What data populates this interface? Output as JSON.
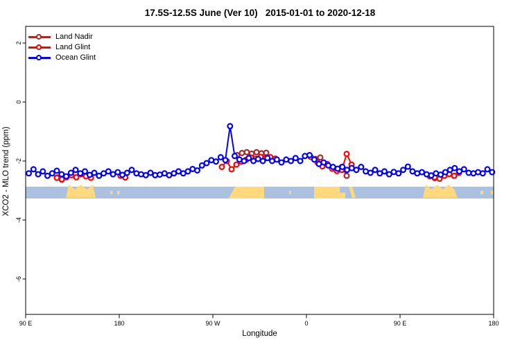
{
  "chart_data": {
    "type": "line",
    "title": "17.5S-12.5S June (Ver 10)   2015-01-01 to 2020-12-18",
    "xlabel": "Longitude",
    "ylabel": "XCO2 - MLO trend (ppm)",
    "x_axis": {
      "range_deg": [
        0,
        450
      ],
      "ticks": [
        {
          "deg": 0,
          "label": "90 E"
        },
        {
          "deg": 90,
          "label": "180"
        },
        {
          "deg": 180,
          "label": "90 W"
        },
        {
          "deg": 270,
          "label": "0"
        },
        {
          "deg": 360,
          "label": "90 E"
        },
        {
          "deg": 450,
          "label": "180"
        }
      ]
    },
    "y_axis": {
      "range": [
        -7.2,
        2.56
      ],
      "ticks": [
        {
          "v": 2,
          "label": "2"
        },
        {
          "v": 0,
          "label": "0"
        },
        {
          "v": -2,
          "label": "-2"
        },
        {
          "v": -4,
          "label": "-4"
        },
        {
          "v": -6,
          "label": "-6"
        }
      ]
    },
    "legend_position": "top-left",
    "series": [
      {
        "name": "Land Nadir",
        "color": "#a52a2a",
        "segments": [
          {
            "points": [
              [
                30,
                -2.56
              ],
              [
                34.7,
                -2.63
              ]
            ]
          },
          {
            "points": [
              [
                203.3,
                -1.8
              ],
              [
                208,
                -1.73
              ],
              [
                212.7,
                -1.7
              ],
              [
                217.3,
                -1.75
              ],
              [
                222,
                -1.7
              ],
              [
                226.7,
                -1.74
              ],
              [
                231.3,
                -1.72
              ]
            ]
          },
          {
            "points": [
              [
                274,
                -1.86
              ],
              [
                278.7,
                -1.93
              ],
              [
                283.3,
                -1.88
              ]
            ]
          },
          {
            "points": [
              [
                304,
                -2.2
              ],
              [
                308.7,
                -2.5
              ]
            ]
          },
          {
            "points": [
              [
                388.7,
                -2.52
              ],
              [
                393.3,
                -2.58
              ]
            ]
          }
        ]
      },
      {
        "name": "Land Glint",
        "color": "#ff0000",
        "segments": [
          {
            "points": [
              [
                30,
                -2.57
              ],
              [
                34.7,
                -2.62
              ],
              [
                39.3,
                -2.55
              ],
              [
                44,
                -2.48
              ],
              [
                48.7,
                -2.55
              ],
              [
                53.3,
                -2.45
              ],
              [
                58,
                -2.52
              ],
              [
                62.7,
                -2.57
              ]
            ]
          },
          {
            "points": [
              [
                91.3,
                -2.5
              ],
              [
                95.8,
                -2.56
              ]
            ]
          },
          {
            "points": [
              [
                188.7,
                -2.2
              ],
              [
                193.3,
                -2.0
              ],
              [
                198,
                -2.28
              ],
              [
                202.7,
                -2.12
              ],
              [
                207.3,
                -2.02
              ],
              [
                212,
                -1.96
              ],
              [
                216.7,
                -1.88
              ],
              [
                221.3,
                -1.92
              ],
              [
                226,
                -1.86
              ],
              [
                230.7,
                -1.9
              ],
              [
                235.3,
                -1.87
              ],
              [
                240,
                -1.92
              ]
            ]
          },
          {
            "points": [
              [
                280.7,
                -2.05
              ],
              [
                285.3,
                -2.18
              ],
              [
                290,
                -2.1
              ],
              [
                294.7,
                -2.26
              ],
              [
                299.3,
                -2.34
              ],
              [
                304,
                -2.3
              ],
              [
                308.7,
                -1.76
              ],
              [
                313.3,
                -2.12
              ],
              [
                318,
                -2.3
              ]
            ]
          },
          {
            "points": [
              [
                388.7,
                -2.5
              ],
              [
                393.3,
                -2.55
              ],
              [
                398,
                -2.6
              ],
              [
                402.7,
                -2.5
              ],
              [
                407.3,
                -2.44
              ],
              [
                412,
                -2.5
              ],
              [
                416.7,
                -2.4
              ]
            ]
          }
        ]
      },
      {
        "name": "Ocean Glint",
        "color": "#0000ff",
        "segments": [
          {
            "start_deg": 3,
            "step_deg": 4.5,
            "values": [
              -2.42,
              -2.28,
              -2.45,
              -2.35,
              -2.5,
              -2.42,
              -2.33,
              -2.45,
              -2.52,
              -2.4,
              -2.3,
              -2.42,
              -2.35,
              -2.47,
              -2.4,
              -2.5,
              -2.42,
              -2.35,
              -2.45,
              -2.38,
              -2.47,
              -2.4,
              -2.3,
              -2.42,
              -2.45,
              -2.48,
              -2.4,
              -2.48,
              -2.46,
              -2.42,
              -2.48,
              -2.42,
              -2.35,
              -2.42,
              -2.35,
              -2.27,
              -2.32,
              -2.15,
              -2.07,
              -1.97,
              -2.02,
              -1.87,
              -1.97,
              -0.82,
              -1.83,
              -1.95,
              -2.0,
              -1.9,
              -2.0,
              -1.93,
              -2.0,
              -1.9,
              -2.0,
              -1.95,
              -2.05,
              -1.95,
              -2.0,
              -1.9,
              -2.0,
              -1.83,
              -1.8,
              -1.95,
              -2.1,
              -2.05,
              -2.15,
              -2.2,
              -2.26,
              -2.2,
              -2.3,
              -2.24,
              -2.3,
              -2.2,
              -2.35,
              -2.4,
              -2.3,
              -2.42,
              -2.35,
              -2.45,
              -2.37,
              -2.42,
              -2.3,
              -2.19,
              -2.35,
              -2.42,
              -2.38,
              -2.45,
              -2.49,
              -2.42,
              -2.46,
              -2.38,
              -2.3,
              -2.24,
              -2.35,
              -2.28,
              -2.4,
              -2.42,
              -2.38,
              -2.42,
              -2.28,
              -2.38
            ]
          }
        ]
      }
    ],
    "map_strip": {
      "ocean_color": "#aac1e0",
      "land_color": "#ffd97b",
      "value_top": -2.87,
      "value_bottom": -3.27,
      "patches": [
        {
          "from": 38.7,
          "to": 67.3,
          "shape": "jagged"
        },
        {
          "from": 81.5,
          "to": 83.5,
          "shape": "dot"
        },
        {
          "from": 88,
          "to": 90.2,
          "shape": "dot"
        },
        {
          "from": 195.3,
          "to": 229.3,
          "shape": "slant-left"
        },
        {
          "from": 253.3,
          "to": 255,
          "shape": "dot"
        },
        {
          "from": 277.3,
          "to": 302,
          "shape": "block"
        },
        {
          "from": 302,
          "to": 307.3,
          "shape": "tail-low"
        },
        {
          "from": 310.7,
          "to": 317.3,
          "shape": "slash"
        },
        {
          "from": 382,
          "to": 415,
          "shape": "jagged"
        },
        {
          "from": 437.3,
          "to": 440,
          "shape": "dot"
        },
        {
          "from": 447.3,
          "to": 449.3,
          "shape": "dot"
        }
      ]
    }
  }
}
